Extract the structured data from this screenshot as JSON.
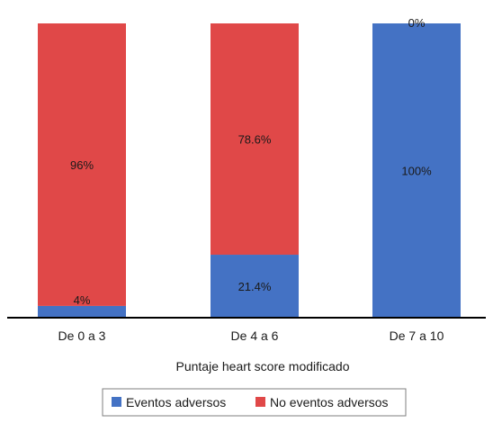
{
  "chart_data": {
    "type": "bar",
    "stacked": true,
    "percent": true,
    "categories": [
      "De 0 a 3",
      "De 4 a 6",
      "De 7 a 10"
    ],
    "series": [
      {
        "name": "Eventos adversos",
        "values": [
          4,
          21.4,
          100
        ],
        "labels": [
          "4%",
          "21.4%",
          "100%"
        ],
        "color": "#4472C4"
      },
      {
        "name": "No eventos adversos",
        "values": [
          96,
          78.6,
          0
        ],
        "labels": [
          "96%",
          "78.6%",
          "0%"
        ],
        "color": "#E04848"
      }
    ],
    "xlabel": "Puntaje heart score modificado",
    "ylim": [
      0,
      100
    ],
    "grid": false,
    "legend": "bottom"
  }
}
